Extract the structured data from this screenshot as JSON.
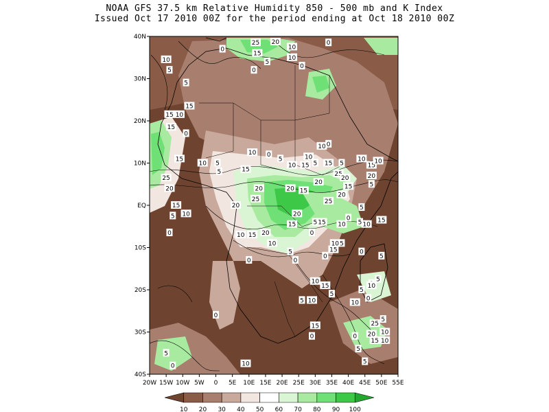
{
  "title": {
    "line1": "NOAA GFS 37.5 km Relative Humidity 850 - 500 mb and K Index",
    "line2": "Issued Oct 17 2010 00Z for the period ending at Oct 18 2010 00Z"
  },
  "map": {
    "lon_range": [
      -20,
      55
    ],
    "lat_range": [
      -40,
      40
    ],
    "lon_ticks": [
      "20W",
      "15W",
      "10W",
      "5W",
      "0",
      "5E",
      "10E",
      "15E",
      "20E",
      "25E",
      "30E",
      "35E",
      "40E",
      "45E",
      "50E",
      "55E"
    ],
    "lat_ticks": [
      {
        "lat": 40,
        "label": "40N"
      },
      {
        "lat": 30,
        "label": "30N"
      },
      {
        "lat": 20,
        "label": "20N"
      },
      {
        "lat": 10,
        "label": "10N"
      },
      {
        "lat": 0,
        "label": "EQ"
      },
      {
        "lat": -10,
        "label": "10S"
      },
      {
        "lat": -20,
        "label": "20S"
      },
      {
        "lat": -30,
        "label": "30S"
      },
      {
        "lat": -40,
        "label": "40S"
      }
    ],
    "k_index_labels": [
      {
        "lon": 2,
        "lat": 37,
        "text": "0"
      },
      {
        "lon": 12,
        "lat": 38.5,
        "text": "25"
      },
      {
        "lon": 18,
        "lat": 38.7,
        "text": "20"
      },
      {
        "lon": 23,
        "lat": 37.5,
        "text": "10"
      },
      {
        "lon": 23,
        "lat": 35,
        "text": "10"
      },
      {
        "lon": 12.5,
        "lat": 36,
        "text": "15"
      },
      {
        "lon": 15.5,
        "lat": 34,
        "text": "5"
      },
      {
        "lon": 11.5,
        "lat": 32,
        "text": "0"
      },
      {
        "lon": 26,
        "lat": 33,
        "text": "0"
      },
      {
        "lon": 34,
        "lat": 38.5,
        "text": "0"
      },
      {
        "lon": -15,
        "lat": 34.5,
        "text": "10"
      },
      {
        "lon": -14,
        "lat": 32,
        "text": "5"
      },
      {
        "lon": -9,
        "lat": 29,
        "text": "5"
      },
      {
        "lon": -8,
        "lat": 23.5,
        "text": "15"
      },
      {
        "lon": -14,
        "lat": 21.5,
        "text": "15"
      },
      {
        "lon": -11,
        "lat": 21.5,
        "text": "10"
      },
      {
        "lon": -13.5,
        "lat": 18.5,
        "text": "15"
      },
      {
        "lon": -9,
        "lat": 17,
        "text": "0"
      },
      {
        "lon": -11,
        "lat": 11,
        "text": "15"
      },
      {
        "lon": -4,
        "lat": 10,
        "text": "10"
      },
      {
        "lon": 0.5,
        "lat": 10,
        "text": "5"
      },
      {
        "lon": 11,
        "lat": 12.5,
        "text": "10"
      },
      {
        "lon": 16,
        "lat": 12,
        "text": "0"
      },
      {
        "lon": 19.5,
        "lat": 11,
        "text": "5"
      },
      {
        "lon": 32,
        "lat": 14,
        "text": "10"
      },
      {
        "lon": 34,
        "lat": 14.5,
        "text": "0"
      },
      {
        "lon": 28,
        "lat": 11.5,
        "text": "10"
      },
      {
        "lon": 23,
        "lat": 9.5,
        "text": "10"
      },
      {
        "lon": 27,
        "lat": 9.5,
        "text": "15"
      },
      {
        "lon": 30,
        "lat": 10,
        "text": "5"
      },
      {
        "lon": 34,
        "lat": 10,
        "text": "15"
      },
      {
        "lon": 38,
        "lat": 10,
        "text": "5"
      },
      {
        "lon": 44,
        "lat": 11,
        "text": "10"
      },
      {
        "lon": 47,
        "lat": 9.5,
        "text": "15"
      },
      {
        "lon": 49,
        "lat": 10.5,
        "text": "10"
      },
      {
        "lon": 9,
        "lat": 8.5,
        "text": "15"
      },
      {
        "lon": 1,
        "lat": 8,
        "text": "5"
      },
      {
        "lon": -15,
        "lat": 6.5,
        "text": "25"
      },
      {
        "lon": -14,
        "lat": 4,
        "text": "20"
      },
      {
        "lon": 13,
        "lat": 4,
        "text": "20"
      },
      {
        "lon": 22.5,
        "lat": 4,
        "text": "20"
      },
      {
        "lon": 26.5,
        "lat": 3.5,
        "text": "15"
      },
      {
        "lon": 31,
        "lat": 5.5,
        "text": "20"
      },
      {
        "lon": 12,
        "lat": 1.5,
        "text": "25"
      },
      {
        "lon": 6,
        "lat": 0,
        "text": "20"
      },
      {
        "lon": 37,
        "lat": 7.5,
        "text": "25"
      },
      {
        "lon": 39,
        "lat": 6.5,
        "text": "20"
      },
      {
        "lon": 40,
        "lat": 4.5,
        "text": "15"
      },
      {
        "lon": 38,
        "lat": 2.5,
        "text": "20"
      },
      {
        "lon": 34,
        "lat": 1,
        "text": "25"
      },
      {
        "lon": 47,
        "lat": 7,
        "text": "20"
      },
      {
        "lon": 47,
        "lat": 5,
        "text": "5"
      },
      {
        "lon": 44,
        "lat": -0.5,
        "text": "5"
      },
      {
        "lon": 24.5,
        "lat": -2,
        "text": "20"
      },
      {
        "lon": 30,
        "lat": -4,
        "text": "5"
      },
      {
        "lon": 32,
        "lat": -4,
        "text": "15"
      },
      {
        "lon": 38,
        "lat": -4.5,
        "text": "10"
      },
      {
        "lon": 40,
        "lat": -3,
        "text": "0"
      },
      {
        "lon": 43.5,
        "lat": -4,
        "text": "5"
      },
      {
        "lon": 45.5,
        "lat": -4.5,
        "text": "10"
      },
      {
        "lon": 50,
        "lat": -3.5,
        "text": "15"
      },
      {
        "lon": 23,
        "lat": -4.5,
        "text": "15"
      },
      {
        "lon": -12,
        "lat": 0,
        "text": "15"
      },
      {
        "lon": -9,
        "lat": -2,
        "text": "10"
      },
      {
        "lon": -13,
        "lat": -2.5,
        "text": "5"
      },
      {
        "lon": -14,
        "lat": -6.5,
        "text": "0"
      },
      {
        "lon": 7.5,
        "lat": -7,
        "text": "10"
      },
      {
        "lon": 11,
        "lat": -7,
        "text": "15"
      },
      {
        "lon": 15,
        "lat": -6.5,
        "text": "20"
      },
      {
        "lon": 17,
        "lat": -9,
        "text": "10"
      },
      {
        "lon": 29,
        "lat": -6.5,
        "text": "0"
      },
      {
        "lon": 36,
        "lat": -9,
        "text": "10"
      },
      {
        "lon": 38,
        "lat": -9,
        "text": "5"
      },
      {
        "lon": 35.5,
        "lat": -10.5,
        "text": "15"
      },
      {
        "lon": 33,
        "lat": -12,
        "text": "0"
      },
      {
        "lon": 22.5,
        "lat": -11,
        "text": "5"
      },
      {
        "lon": 24,
        "lat": -13,
        "text": "0"
      },
      {
        "lon": 10,
        "lat": -13,
        "text": "0"
      },
      {
        "lon": 44,
        "lat": -11,
        "text": "0"
      },
      {
        "lon": 50,
        "lat": -12,
        "text": "5"
      },
      {
        "lon": 30,
        "lat": -18,
        "text": "10"
      },
      {
        "lon": 33,
        "lat": -19,
        "text": "15"
      },
      {
        "lon": 35,
        "lat": -21,
        "text": "5"
      },
      {
        "lon": 47,
        "lat": -18.5,
        "text": "0"
      },
      {
        "lon": 49,
        "lat": -17.5,
        "text": "5"
      },
      {
        "lon": 47,
        "lat": -19,
        "text": "10"
      },
      {
        "lon": 44,
        "lat": -20,
        "text": "5"
      },
      {
        "lon": 26,
        "lat": -22.5,
        "text": "5"
      },
      {
        "lon": 29,
        "lat": -22.5,
        "text": "10"
      },
      {
        "lon": 42,
        "lat": -23,
        "text": "10"
      },
      {
        "lon": 46,
        "lat": -22,
        "text": "0"
      },
      {
        "lon": 48,
        "lat": -28,
        "text": "25"
      },
      {
        "lon": 50.5,
        "lat": -27,
        "text": "5"
      },
      {
        "lon": 51,
        "lat": -30,
        "text": "10"
      },
      {
        "lon": 47,
        "lat": -30.5,
        "text": "20"
      },
      {
        "lon": 48,
        "lat": -32,
        "text": "15"
      },
      {
        "lon": 51,
        "lat": -32,
        "text": "10"
      },
      {
        "lon": 42,
        "lat": -31,
        "text": "0"
      },
      {
        "lon": 43,
        "lat": -34,
        "text": "5"
      },
      {
        "lon": 45,
        "lat": -37,
        "text": "5"
      },
      {
        "lon": 30,
        "lat": -28.5,
        "text": "15"
      },
      {
        "lon": 29,
        "lat": -31,
        "text": "0"
      },
      {
        "lon": 0,
        "lat": -26,
        "text": "0"
      },
      {
        "lon": 9,
        "lat": -37.5,
        "text": "10"
      },
      {
        "lon": -15,
        "lat": -35,
        "text": "5"
      },
      {
        "lon": -13,
        "lat": -38,
        "text": "0"
      }
    ]
  },
  "colorbar": {
    "labels": [
      "10",
      "20",
      "30",
      "40",
      "50",
      "60",
      "70",
      "80",
      "90",
      "100"
    ],
    "colors": [
      "#6e4430",
      "#8a5c48",
      "#a87e6e",
      "#c9a99c",
      "#f2e6e0",
      "#ffffff",
      "#daf5d4",
      "#a8eba0",
      "#6ee075",
      "#3dc848",
      "#22a82e"
    ]
  },
  "fill_colors": {
    "dry1": "#6e4430",
    "dry2": "#8a5c48",
    "dry3": "#a87e6e",
    "dry4": "#c9a99c",
    "dry5": "#f2e6e0",
    "neutral": "#ffffff",
    "wet1": "#daf5d4",
    "wet2": "#a8eba0",
    "wet3": "#6ee075",
    "wet4": "#3dc848"
  }
}
